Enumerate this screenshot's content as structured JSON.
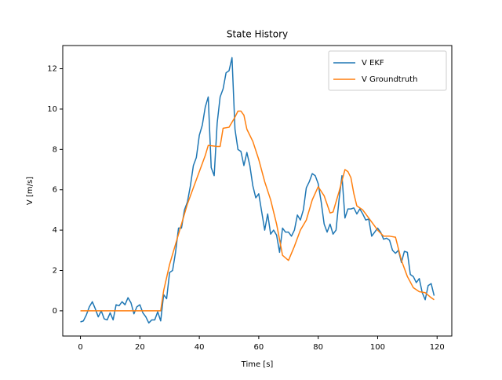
{
  "chart_data": {
    "type": "line",
    "title": "State History",
    "x_label": "Time [s]",
    "y_label": "V [m/s]",
    "xlim": [
      -5.95,
      124.95
    ],
    "xticks": [
      0,
      20,
      40,
      60,
      80,
      100,
      120
    ],
    "ylim": [
      -1.25,
      13.15
    ],
    "yticks": [
      0,
      2,
      4,
      6,
      8,
      10,
      12
    ],
    "grid": false,
    "legend": "upper right",
    "series": [
      {
        "name": "V EKF",
        "color": "#1f77b4",
        "x": [
          0,
          1,
          2,
          3,
          4,
          5,
          6,
          7,
          8,
          9,
          10,
          11,
          12,
          13,
          14,
          15,
          16,
          17,
          18,
          19,
          20,
          21,
          22,
          23,
          24,
          25,
          26,
          27,
          28,
          29,
          30,
          31,
          32,
          33,
          34,
          35,
          36,
          37,
          38,
          39,
          40,
          41,
          42,
          43,
          44,
          45,
          46,
          47,
          48,
          49,
          50,
          51,
          52,
          53,
          54,
          55,
          56,
          57,
          58,
          59,
          60,
          61,
          62,
          63,
          64,
          65,
          66,
          67,
          68,
          69,
          70,
          71,
          72,
          73,
          74,
          75,
          76,
          77,
          78,
          79,
          80,
          81,
          82,
          83,
          84,
          85,
          86,
          87,
          88,
          89,
          90,
          91,
          92,
          93,
          94,
          95,
          96,
          97,
          98,
          99,
          100,
          101,
          102,
          103,
          104,
          105,
          106,
          107,
          108,
          109,
          110,
          111,
          112,
          113,
          114,
          115,
          116,
          117,
          118,
          119
        ],
        "values": [
          -0.55,
          -0.5,
          -0.2,
          0.2,
          0.45,
          0.1,
          -0.3,
          0,
          -0.4,
          -0.45,
          -0.1,
          -0.45,
          0.3,
          0.25,
          0.45,
          0.3,
          0.65,
          0.4,
          -0.15,
          0.2,
          0.3,
          -0.1,
          -0.3,
          -0.6,
          -0.45,
          -0.45,
          -0.05,
          -0.5,
          0.8,
          0.6,
          1.9,
          2.0,
          2.9,
          4.1,
          4.1,
          5.0,
          5.4,
          6.2,
          7.2,
          7.6,
          8.7,
          9.2,
          10.1,
          10.6,
          7.1,
          6.7,
          9.3,
          10.6,
          11.0,
          11.8,
          11.9,
          12.55,
          9.0,
          8.0,
          7.9,
          7.2,
          7.85,
          7.2,
          6.2,
          5.6,
          5.8,
          4.9,
          4.0,
          4.8,
          3.8,
          4.0,
          3.75,
          2.9,
          4.1,
          3.9,
          3.9,
          3.7,
          4.0,
          4.75,
          4.5,
          5.0,
          6.1,
          6.4,
          6.8,
          6.7,
          6.3,
          5.4,
          4.3,
          3.9,
          4.3,
          3.8,
          4.0,
          5.5,
          6.7,
          4.6,
          5.05,
          5.05,
          5.1,
          4.8,
          5.05,
          4.8,
          4.5,
          4.55,
          3.7,
          3.9,
          4.1,
          3.9,
          3.55,
          3.6,
          3.5,
          3.0,
          2.85,
          3.0,
          2.4,
          2.95,
          2.9,
          1.8,
          1.7,
          1.4,
          1.6,
          0.9,
          0.55,
          1.25,
          1.35,
          0.75
        ]
      },
      {
        "name": "V Groundtruth",
        "color": "#ff7f0e",
        "x": [
          0,
          27,
          28,
          30,
          32,
          34,
          36,
          38,
          40,
          42,
          43,
          46,
          47,
          48,
          50,
          52,
          53,
          54,
          55,
          56,
          58,
          60,
          62,
          64,
          66,
          68,
          70,
          72,
          74,
          76,
          78,
          80,
          82,
          84,
          85,
          87,
          89,
          90,
          91,
          92,
          93,
          95,
          97,
          100,
          102,
          104,
          106,
          108,
          110,
          112,
          114,
          116,
          118,
          119
        ],
        "values": [
          0,
          0,
          1.0,
          2.3,
          3.3,
          4.3,
          5.3,
          6.1,
          6.9,
          7.7,
          8.2,
          8.15,
          8.15,
          9.05,
          9.1,
          9.6,
          9.9,
          9.9,
          9.7,
          9.0,
          8.4,
          7.5,
          6.4,
          5.5,
          4.3,
          2.75,
          2.5,
          3.2,
          4.0,
          4.5,
          5.5,
          6.15,
          5.7,
          4.85,
          4.9,
          5.9,
          7.0,
          6.9,
          6.6,
          5.8,
          5.2,
          5.0,
          4.6,
          4.0,
          3.7,
          3.7,
          3.65,
          2.5,
          1.7,
          1.15,
          0.95,
          0.9,
          0.65,
          0.55
        ]
      }
    ]
  }
}
